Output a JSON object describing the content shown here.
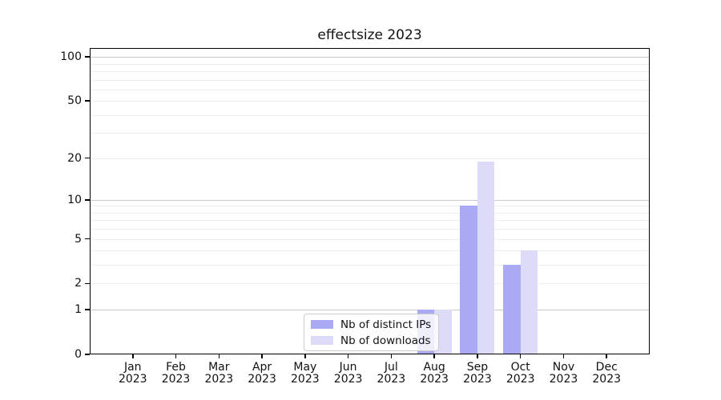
{
  "chart_data": {
    "type": "bar",
    "title": "effectsize 2023",
    "month_labels": [
      "Jan",
      "Feb",
      "Mar",
      "Apr",
      "May",
      "Jun",
      "Jul",
      "Aug",
      "Sep",
      "Oct",
      "Nov",
      "Dec"
    ],
    "year_label": "2023",
    "categories": [
      "Jan 2023",
      "Feb 2023",
      "Mar 2023",
      "Apr 2023",
      "May 2023",
      "Jun 2023",
      "Jul 2023",
      "Aug 2023",
      "Sep 2023",
      "Oct 2023",
      "Nov 2023",
      "Dec 2023"
    ],
    "series": [
      {
        "name": "Nb of distinct IPs",
        "color": "#a9a9f4",
        "values": [
          0,
          0,
          0,
          0,
          0,
          0,
          0,
          1,
          9,
          3,
          0,
          0
        ]
      },
      {
        "name": "Nb of downloads",
        "color": "#dcdcf8",
        "values": [
          0,
          0,
          0,
          0,
          0,
          0,
          0,
          1,
          19,
          4,
          0,
          0
        ]
      }
    ],
    "yscale": "log1p",
    "ylim": [
      0,
      115
    ],
    "y_tick_labels": [
      0,
      1,
      2,
      5,
      10,
      20,
      50,
      100
    ],
    "grid_major": [
      1,
      10,
      100
    ],
    "grid_minor": [
      2,
      3,
      4,
      5,
      6,
      7,
      8,
      9,
      20,
      30,
      40,
      50,
      60,
      70,
      80,
      90
    ],
    "grid_on": true,
    "legend_position": "lower center",
    "colors": {
      "grid_major": "#c9c9c9",
      "grid_minor": "#ededed",
      "axis": "#000000",
      "text": "#111111",
      "legend_border": "#cccccc",
      "background": "#ffffff"
    }
  }
}
